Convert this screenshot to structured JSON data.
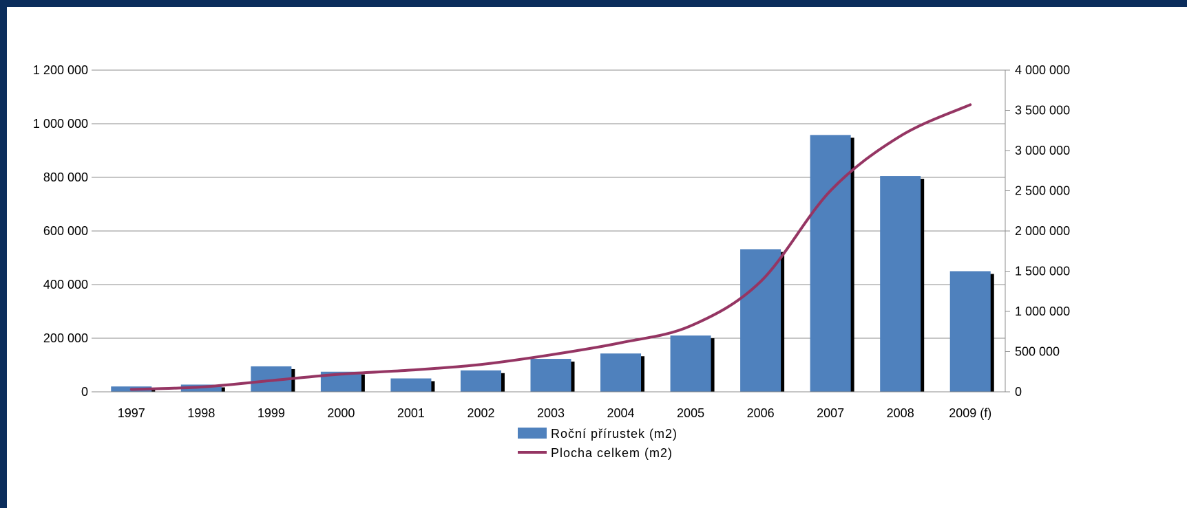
{
  "colors": {
    "background": "#0b2d5c",
    "bar": "#4f81bd",
    "bar_shadow": "#000000",
    "line": "#953563",
    "grid": "#8c8c8c"
  },
  "chart_data": {
    "type": "bar",
    "categories": [
      "1997",
      "1998",
      "1999",
      "2000",
      "2001",
      "2002",
      "2003",
      "2004",
      "2005",
      "2006",
      "2007",
      "2008",
      "2009 (f)"
    ],
    "series": [
      {
        "name": "Roční přírustek (m2)",
        "type": "bar",
        "axis": "left",
        "values": [
          20000,
          27000,
          95000,
          75000,
          50000,
          80000,
          123000,
          143000,
          210000,
          532000,
          958000,
          805000,
          450000
        ]
      },
      {
        "name": "Plocha celkem (m2)",
        "type": "line",
        "axis": "right",
        "values": [
          30000,
          60000,
          140000,
          220000,
          270000,
          340000,
          460000,
          610000,
          820000,
          1370000,
          2500000,
          3180000,
          3570000
        ]
      }
    ],
    "y_left": {
      "lim": [
        0,
        1200000
      ],
      "ticks": [
        0,
        200000,
        400000,
        600000,
        800000,
        1000000,
        1200000
      ],
      "tick_labels": [
        "0",
        "200 000",
        "400 000",
        "600 000",
        "800 000",
        "1 000 000",
        "1 200 000"
      ]
    },
    "y_right": {
      "lim": [
        0,
        4000000
      ],
      "ticks": [
        0,
        500000,
        1000000,
        1500000,
        2000000,
        2500000,
        3000000,
        3500000,
        4000000
      ],
      "tick_labels": [
        "0",
        "500 000",
        "1 000 000",
        "1 500 000",
        "2 000 000",
        "2 500 000",
        "3 000 000",
        "3 500 000",
        "4 000 000"
      ]
    },
    "grid": true,
    "legend_position": "bottom"
  }
}
